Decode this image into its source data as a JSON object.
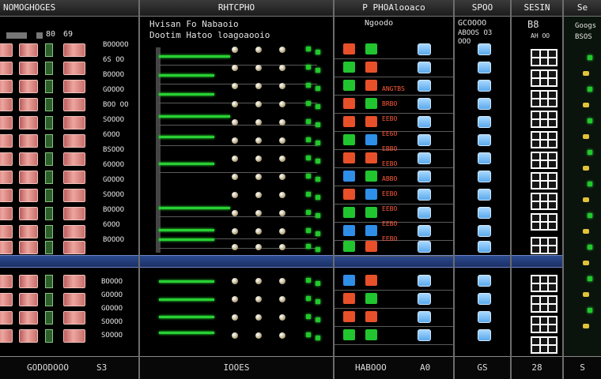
{
  "panels": {
    "p1": {
      "header": "NOMOGHOGES",
      "footer": "GODODOOO",
      "footer_right": "S3",
      "top": [
        "80",
        "69"
      ],
      "labels": [
        "BOOOOO",
        "6S OO",
        "BOOOO",
        "GOOOO",
        "BOO OO",
        "SOOOO",
        "6OOO",
        "BSOOO",
        "6OOOO",
        "GOOOO",
        "SOOOO",
        "BOOOO",
        "6OOO",
        "BOOOO"
      ],
      "labels_lower": [
        "BOOOO",
        "GOOOO",
        "GOOOO",
        "SOOOO",
        "SOOOO"
      ]
    },
    "p2": {
      "header": "RHTCPHO",
      "header2": "Hvisan  Fo  Nabaoio",
      "header3": "Dootim Hatoo  loagoaooio",
      "footer": "IOOES"
    },
    "p3": {
      "header": "P PHOAlooaco",
      "header2": "Ngoodo",
      "footer": "HABOOO",
      "footer_right": "A0",
      "reds": [
        "ANGTBS",
        "BRBO",
        "EEBO",
        "EE6O",
        "EBBO",
        "EEBO",
        "ABBO",
        "EEBO",
        "EEBO",
        "EEBO",
        "EEBO"
      ]
    },
    "p4": {
      "header": "SPOO",
      "header2": "GCOOOO",
      "header3": "ABOOS  O3",
      "header4": "OOO",
      "footer": "GS"
    },
    "p5": {
      "header": "SESIN",
      "header2": "B8",
      "header3": "AH OO",
      "footer": "28"
    },
    "p6": {
      "header": "Se",
      "header2": "Googs",
      "header3": "BSOS",
      "footer": "S"
    }
  },
  "colors": {
    "accent_blue": "#24408a",
    "green": "#28d033",
    "pink": "#eea6a0",
    "orange": "#e8502a",
    "light_blue": "#5aa9ec"
  }
}
